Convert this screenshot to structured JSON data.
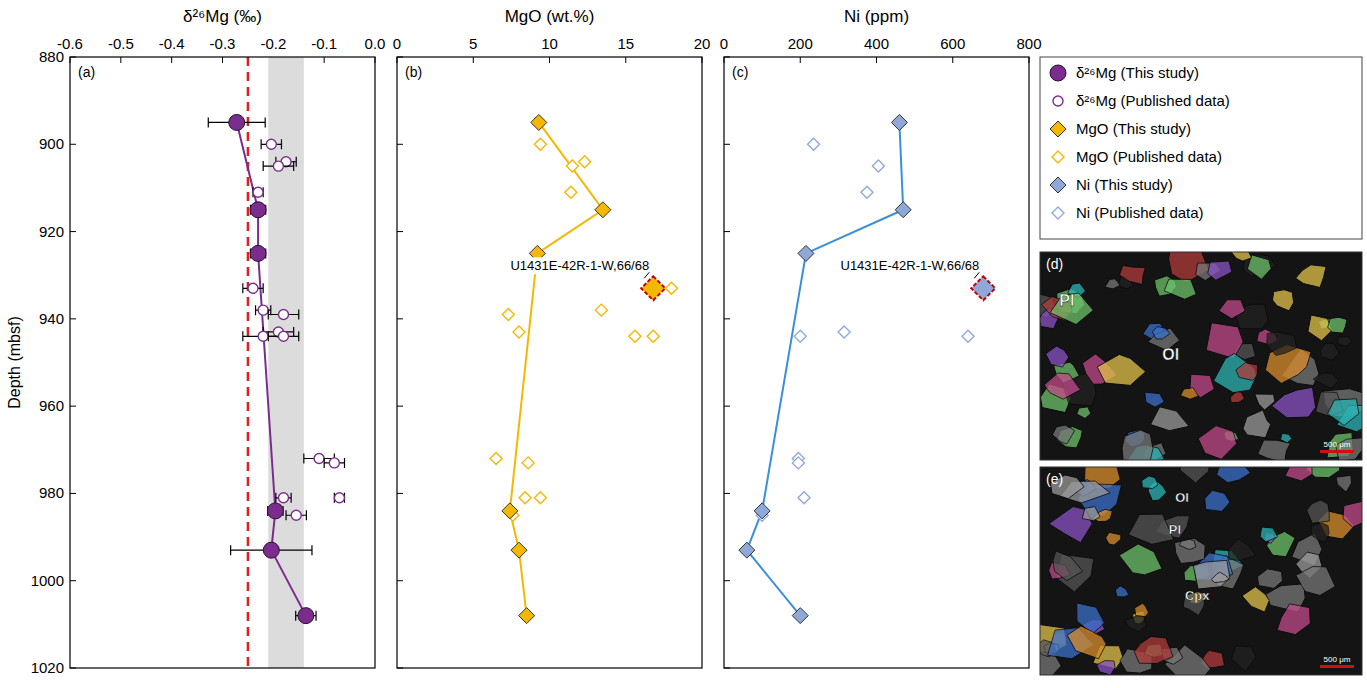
{
  "chart_data": [
    {
      "type": "scatter",
      "panel": "(a)",
      "xlabel": "δ²⁶Mg (‰)",
      "ylabel": "Depth (mbsf)",
      "xlim": [
        -0.6,
        0
      ],
      "xticks": [
        -0.6,
        -0.5,
        -0.4,
        -0.3,
        -0.2,
        -0.1,
        {
          "value": 0,
          "label": "0.0"
        }
      ],
      "ylim": [
        1020,
        880
      ],
      "yticks": [
        880,
        900,
        920,
        940,
        960,
        980,
        1000,
        1020
      ],
      "legend": "right",
      "reference_line": {
        "x": -0.25,
        "color": "#e02020",
        "line_style": "dashed"
      },
      "reference_band": {
        "x": [
          -0.21,
          -0.14
        ],
        "color": "#dcdcdc"
      },
      "series": [
        {
          "name": "δ²⁶Mg (This study)",
          "color": "#7b2d8e",
          "marker": "circle",
          "line_style": "solid",
          "x": [
            -0.272,
            -0.23,
            -0.23,
            -0.196,
            -0.204,
            -0.136
          ],
          "x_errors": [
            0.056,
            0.015,
            0.015,
            0.015,
            0.08,
            0.02
          ],
          "values": [
            895,
            915,
            925,
            984,
            993,
            1008
          ]
        },
        {
          "name": "δ²⁶Mg (Published data)",
          "color": "#7b2d8e",
          "marker": "circle-open",
          "line_style": "none",
          "x": [
            -0.204,
            -0.175,
            -0.19,
            -0.23,
            -0.24,
            -0.22,
            -0.18,
            -0.19,
            -0.22,
            -0.18,
            -0.11,
            -0.08,
            -0.18,
            -0.07,
            -0.155
          ],
          "x_errors": [
            0.02,
            0.02,
            0.03,
            0.01,
            0.02,
            0.015,
            0.03,
            0.03,
            0.04,
            0.03,
            0.03,
            0.02,
            0.015,
            0.01,
            0.02
          ],
          "values": [
            900,
            904,
            905,
            911,
            933,
            938,
            939,
            943,
            944,
            944,
            972,
            973,
            981,
            981,
            985
          ]
        }
      ]
    },
    {
      "type": "scatter",
      "panel": "(b)",
      "xlabel": "MgO (wt.%)",
      "xlim": [
        0,
        20
      ],
      "xticks": [
        0,
        5,
        10,
        15,
        20
      ],
      "ylim": [
        1020,
        880
      ],
      "yticks": [
        880,
        900,
        920,
        940,
        960,
        980,
        1000,
        1020
      ],
      "tick_labels": "x",
      "annotation": {
        "text": "U1431E-42R-1-W,66/68",
        "x": 16.8,
        "y": 933
      },
      "series": [
        {
          "name": "MgO (This study)",
          "color": "#f5b800",
          "marker": "diamond",
          "line_style": "solid",
          "x": [
            9.3,
            13.5,
            9.2,
            7.4,
            8.0,
            8.5
          ],
          "values": [
            895,
            915,
            925,
            984,
            993,
            1008
          ]
        },
        {
          "name": "MgO (Published data)",
          "color": "#f5b800",
          "marker": "diamond-open",
          "line_style": "none",
          "x": [
            9.4,
            12.3,
            11.5,
            11.4,
            18.0,
            13.4,
            7.3,
            8.0,
            15.6,
            16.8,
            6.5,
            8.6,
            8.4,
            9.4,
            7.6
          ],
          "values": [
            900,
            904,
            905,
            911,
            933,
            938,
            939,
            943,
            944,
            944,
            972,
            973,
            981,
            981,
            985
          ]
        }
      ]
    },
    {
      "type": "scatter",
      "panel": "(c)",
      "xlabel": "Ni (ppm)",
      "xlim": [
        0,
        800
      ],
      "xticks": [
        0,
        200,
        400,
        600,
        800
      ],
      "ylim": [
        1020,
        880
      ],
      "yticks": [
        880,
        900,
        920,
        940,
        960,
        980,
        1000,
        1020
      ],
      "tick_labels": "x",
      "annotation": {
        "text": "U1431E-42R-1-W,66/68",
        "x": 680,
        "y": 933
      },
      "series": [
        {
          "name": "Ni (This study)",
          "color": "#8fa8d8",
          "marker": "diamond",
          "line_style": "solid",
          "x": [
            460,
            470,
            215,
            100,
            60,
            200
          ],
          "values": [
            895,
            915,
            925,
            984,
            993,
            1008
          ]
        },
        {
          "name": "Ni (Published data)",
          "color": "#8fa8e0",
          "marker": "diamond-open",
          "line_style": "none",
          "x": [
            235,
            405,
            375,
            315,
            200,
            640,
            195,
            195,
            210,
            100
          ],
          "values": [
            900,
            905,
            911,
            943,
            944,
            944,
            972,
            973,
            981,
            985
          ]
        }
      ]
    }
  ],
  "micrographs": [
    {
      "label": "(d)",
      "minerals": [
        "Pl",
        "Ol"
      ],
      "scale_bar": "500 μm"
    },
    {
      "label": "(e)",
      "minerals": [
        "Ol",
        "Pl",
        "Cpx"
      ],
      "scale_bar": "500 μm"
    }
  ]
}
